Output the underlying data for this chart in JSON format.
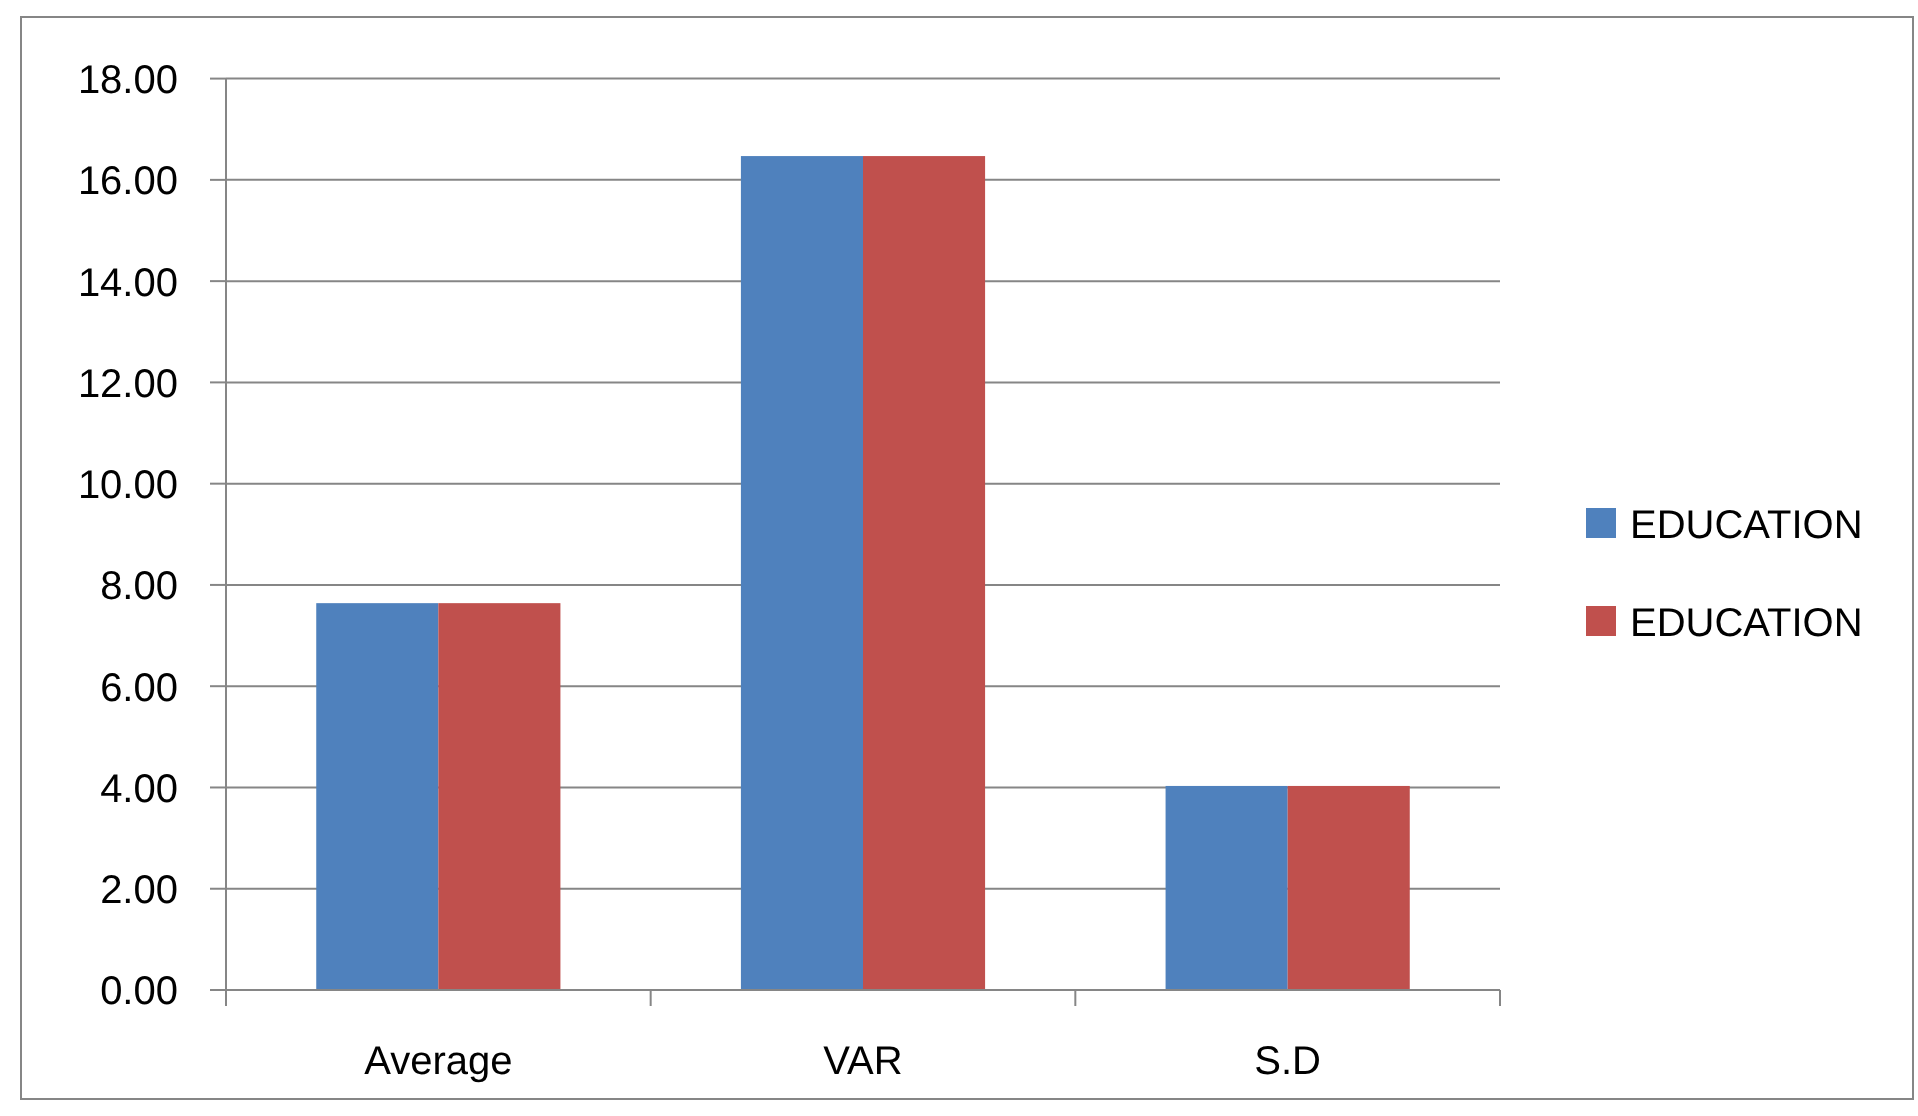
{
  "chart_data": {
    "type": "bar",
    "categories": [
      "Average",
      "VAR",
      "S.D"
    ],
    "series": [
      {
        "name": "EDUCATION",
        "color": "#4f81bd",
        "values": [
          7.64,
          16.47,
          4.03
        ]
      },
      {
        "name": "EDUCATION",
        "color": "#c0504d",
        "values": [
          7.64,
          16.47,
          4.03
        ]
      }
    ],
    "ylim": [
      0,
      18
    ],
    "yticks": [
      {
        "value": 0,
        "label": "0.00"
      },
      {
        "value": 2,
        "label": "2.00"
      },
      {
        "value": 4,
        "label": "4.00"
      },
      {
        "value": 6,
        "label": "6.00"
      },
      {
        "value": 8,
        "label": "8.00"
      },
      {
        "value": 10,
        "label": "10.00"
      },
      {
        "value": 12,
        "label": "12.00"
      },
      {
        "value": 14,
        "label": "14.00"
      },
      {
        "value": 16,
        "label": "16.00"
      },
      {
        "value": 18,
        "label": "18.00"
      }
    ],
    "grid": "y",
    "legend": "right"
  }
}
